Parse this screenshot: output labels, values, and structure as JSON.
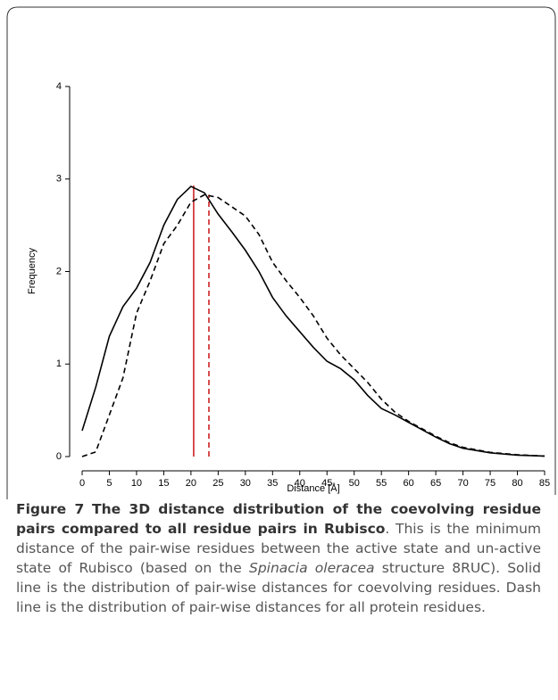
{
  "chart_data": {
    "type": "line",
    "x": [
      0,
      2.5,
      5,
      7.5,
      10,
      12.5,
      15,
      17.5,
      20,
      22.5,
      25,
      27.5,
      30,
      32.5,
      35,
      37.5,
      40,
      42.5,
      45,
      47.5,
      50,
      52.5,
      55,
      57.5,
      60,
      62.5,
      65,
      67.5,
      70,
      75,
      80,
      85
    ],
    "series": [
      {
        "color": "#000000",
        "line_style": "solid",
        "values": [
          0.28,
          0.75,
          1.3,
          1.62,
          1.82,
          2.1,
          2.5,
          2.78,
          2.92,
          2.85,
          2.62,
          2.43,
          2.23,
          2.0,
          1.72,
          1.52,
          1.35,
          1.18,
          1.03,
          0.95,
          0.83,
          0.66,
          0.52,
          0.45,
          0.37,
          0.29,
          0.21,
          0.14,
          0.09,
          0.04,
          0.015,
          0.005
        ]
      },
      {
        "color": "#000000",
        "line_style": "dashed",
        "values": [
          0,
          0.05,
          0.45,
          0.85,
          1.55,
          1.9,
          2.3,
          2.5,
          2.75,
          2.83,
          2.8,
          2.7,
          2.6,
          2.4,
          2.1,
          1.9,
          1.72,
          1.52,
          1.28,
          1.1,
          0.95,
          0.8,
          0.62,
          0.48,
          0.38,
          0.3,
          0.22,
          0.15,
          0.1,
          0.045,
          0.02,
          0.005
        ]
      }
    ],
    "vlines": [
      {
        "x": 20.5,
        "y": 2.93,
        "color": "#cc2222",
        "line_style": "solid"
      },
      {
        "x": 23.3,
        "y": 2.83,
        "color": "#cc2222",
        "line_style": "dashed"
      }
    ],
    "xlabel": "Distance [Å]",
    "ylabel": "Frequency",
    "xlim": [
      0,
      85
    ],
    "ylim": [
      0,
      4
    ],
    "xticks": [
      0,
      5,
      10,
      15,
      20,
      25,
      30,
      35,
      40,
      45,
      50,
      55,
      60,
      65,
      70,
      75,
      80,
      85
    ],
    "yticks": [
      0,
      1,
      2,
      3,
      4
    ]
  },
  "caption": {
    "label": "Figure 7",
    "title": "The 3D distance distribution of the coevolving residue pairs compared to all residue pairs in Rubisco",
    "body_before": ". This is the minimum distance of the pair-wise residues between the active state and un-active state of Rubisco (based on the",
    "species": "Spinacia oleracea",
    "body_after": "structure 8RUC). Solid line is the distribution of pair-wise distances for coevolving residues. Dash line is the distribution of pair-wise distances for all protein residues."
  }
}
